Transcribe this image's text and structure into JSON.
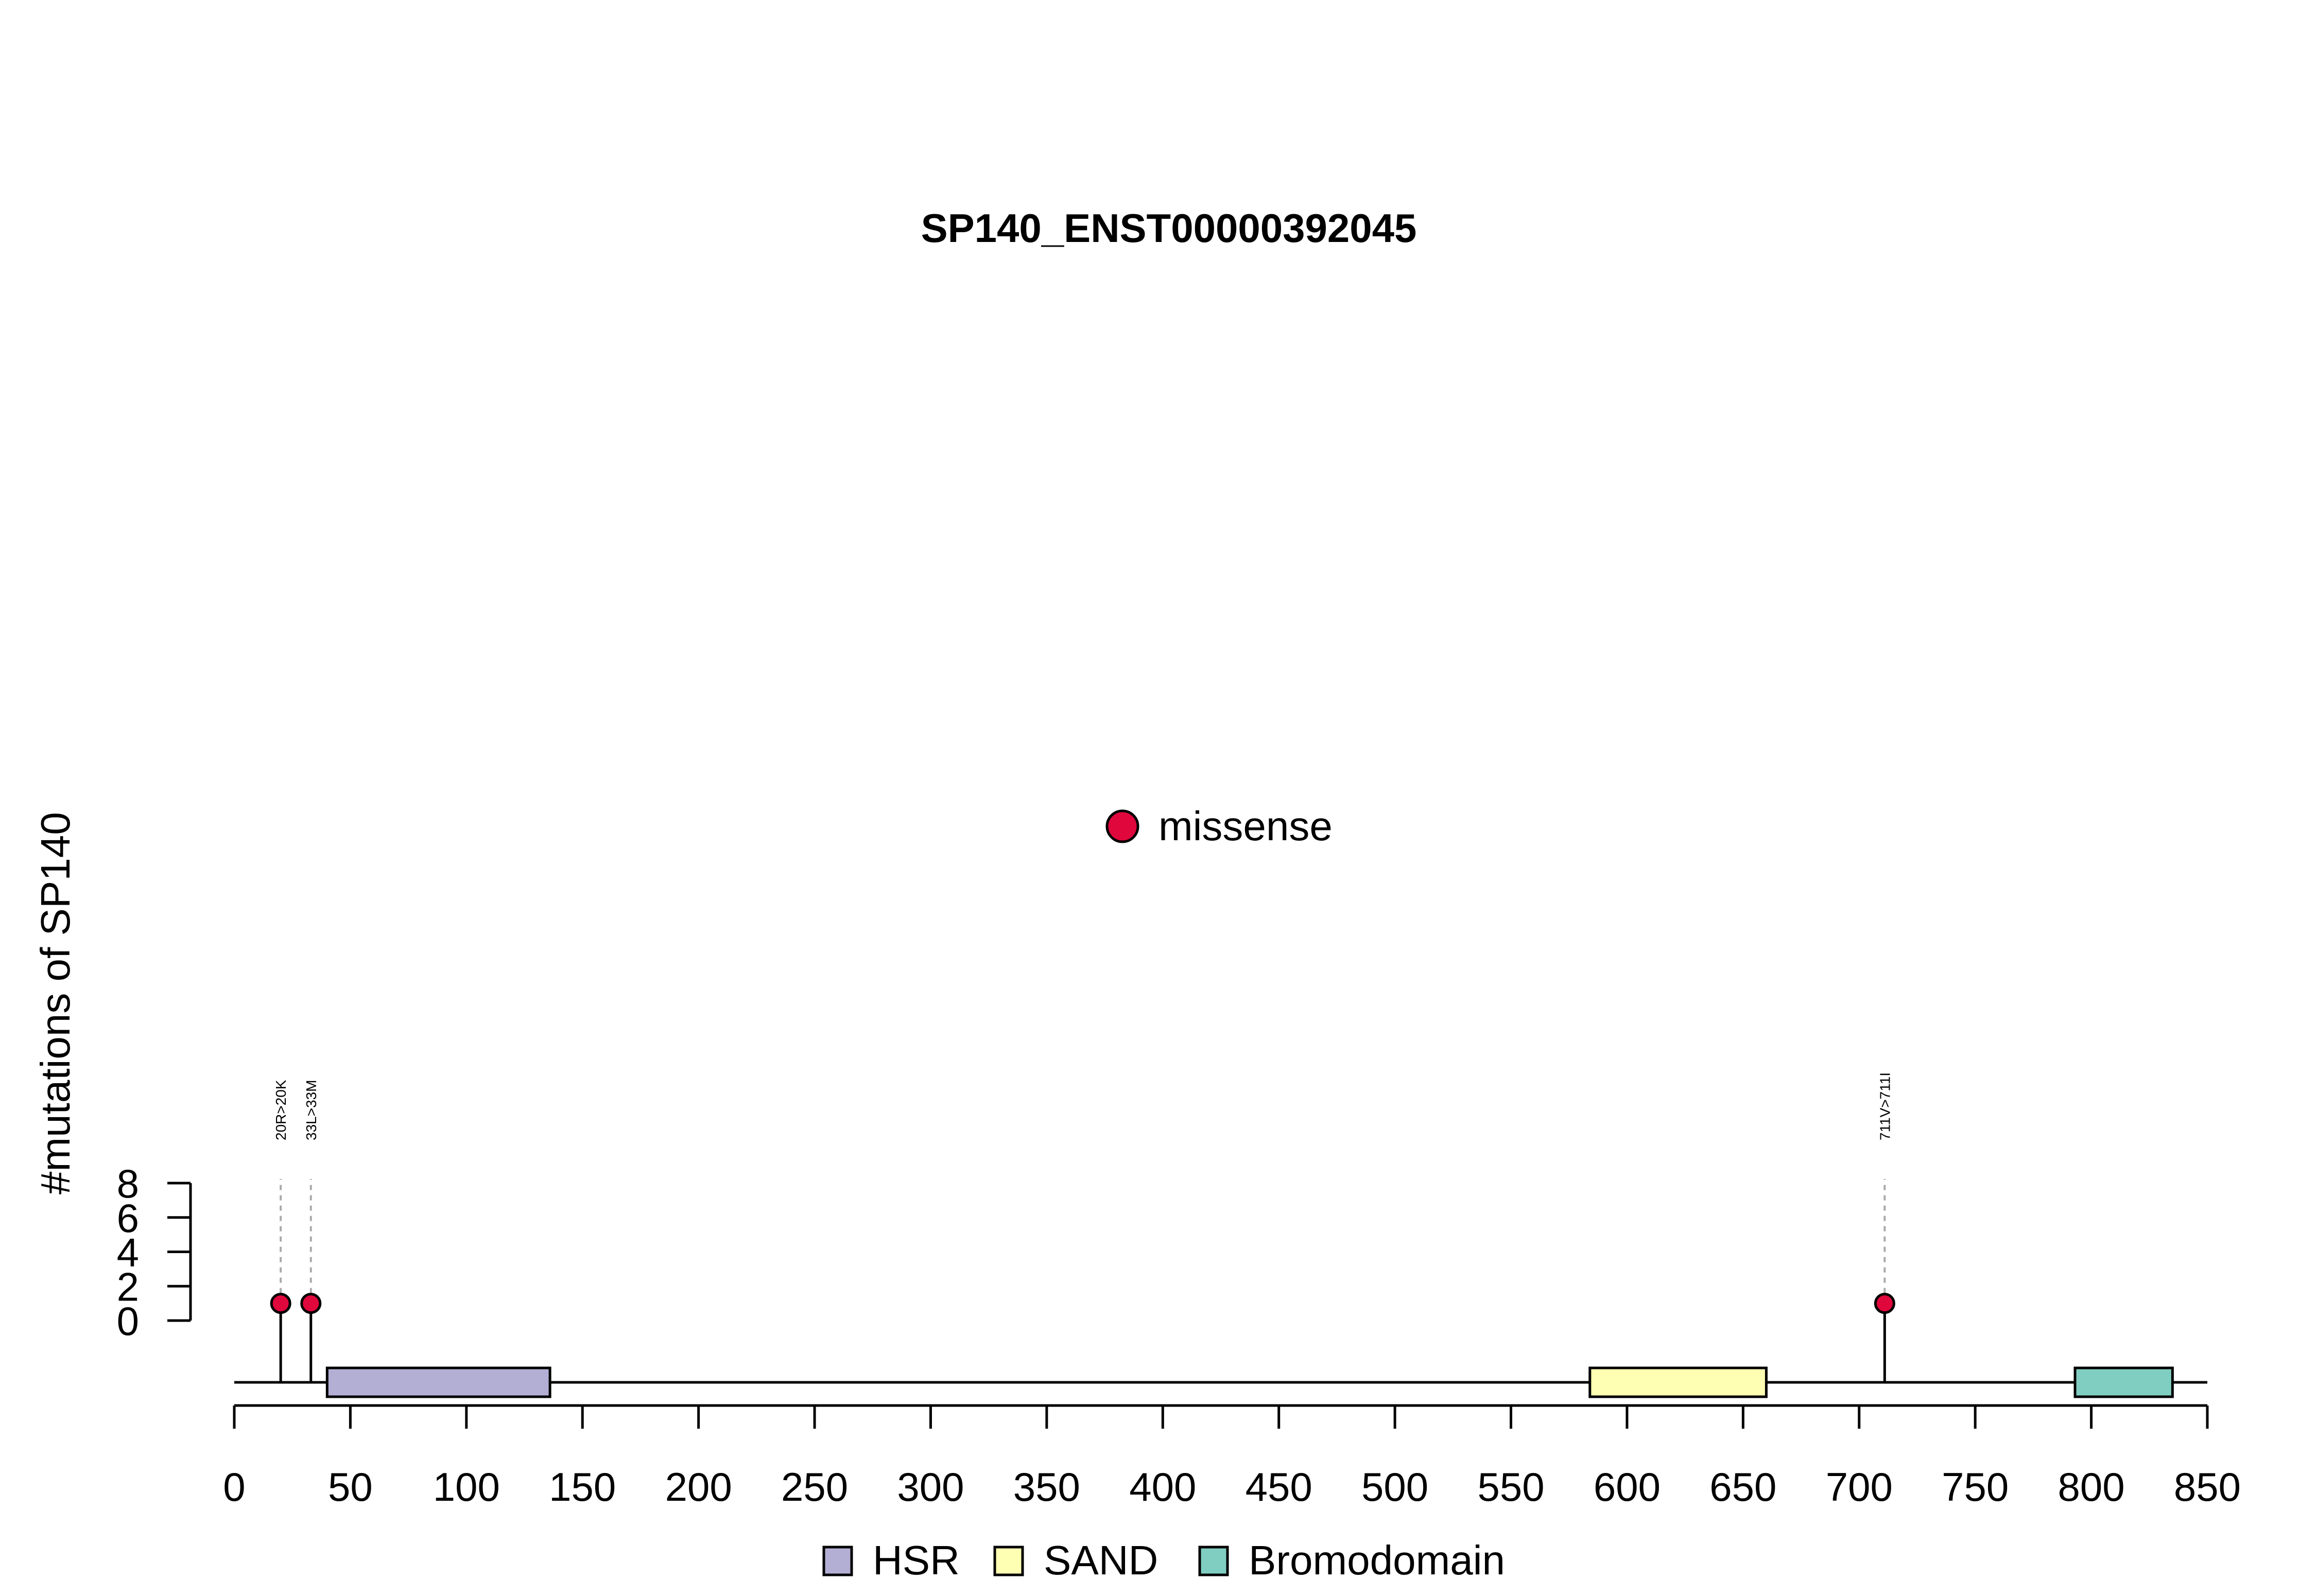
{
  "chart_data": {
    "type": "lollipop",
    "title": "SP140_ENST00000392045",
    "ylabel": "#mutations of SP140",
    "xlim": [
      0,
      850
    ],
    "ylim": [
      0,
      8
    ],
    "x_ticks": [
      0,
      50,
      100,
      150,
      200,
      250,
      300,
      350,
      400,
      450,
      500,
      550,
      600,
      650,
      700,
      750,
      800,
      850
    ],
    "y_ticks": [
      0,
      2,
      4,
      6,
      8
    ],
    "mutations": [
      {
        "position": 20,
        "count": 1,
        "label": "20R>20K",
        "type": "missense"
      },
      {
        "position": 33,
        "count": 1,
        "label": "33L>33M",
        "type": "missense"
      },
      {
        "position": 711,
        "count": 1,
        "label": "711V>711I",
        "type": "missense"
      }
    ],
    "domains": [
      {
        "name": "HSR",
        "start": 40,
        "end": 136,
        "color": "#b3aed4"
      },
      {
        "name": "SAND",
        "start": 584,
        "end": 660,
        "color": "#ffffb3"
      },
      {
        "name": "Bromodomain",
        "start": 793,
        "end": 835,
        "color": "#80cdc1"
      }
    ],
    "mutation_legend": [
      {
        "label": "missense",
        "color": "#e0073d"
      }
    ],
    "domain_legend": [
      "HSR",
      "SAND",
      "Bromodomain"
    ]
  }
}
